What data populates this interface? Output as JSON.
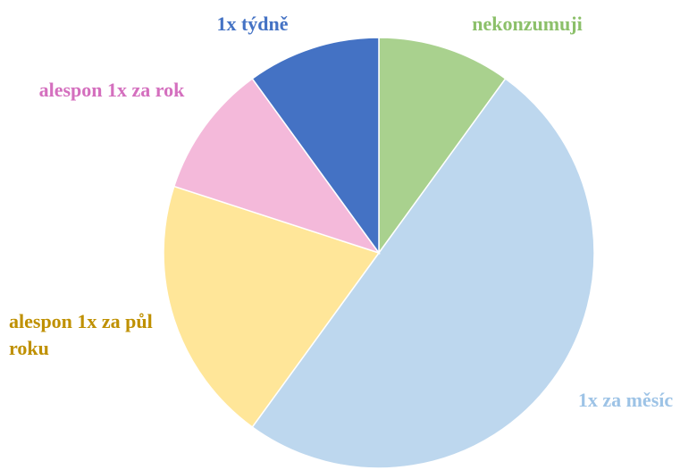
{
  "chart_data": {
    "type": "pie",
    "categories": [
      "nekonzumuji",
      "1x za měsíc",
      "alespon 1x za půl roku",
      "alespon 1x za rok",
      "1x týdně"
    ],
    "values": [
      10,
      50,
      20,
      10,
      10
    ],
    "colors": [
      "#a9d18e",
      "#bdd7ee",
      "#ffe699",
      "#f4b9da",
      "#4472c4"
    ],
    "label_colors": [
      "#8cc06a",
      "#9dc3e6",
      "#bf9000",
      "#d46fbe",
      "#4472c4"
    ]
  }
}
